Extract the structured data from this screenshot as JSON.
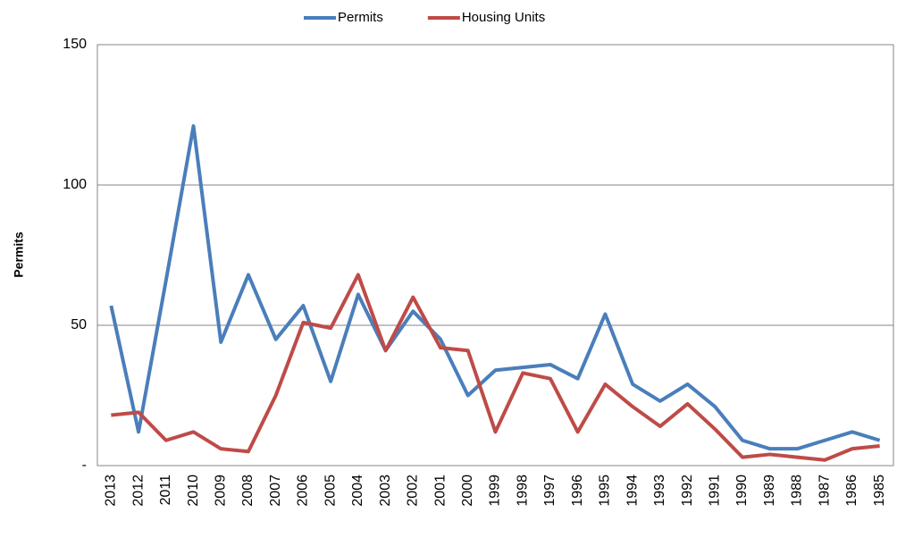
{
  "chart_data": {
    "type": "line",
    "y_label": "Permits",
    "categories": [
      "2013",
      "2012",
      "2011",
      "2010",
      "2009",
      "2008",
      "2007",
      "2006",
      "2005",
      "2004",
      "2003",
      "2002",
      "2001",
      "2000",
      "1999",
      "1998",
      "1997",
      "1996",
      "1995",
      "1994",
      "1993",
      "1992",
      "1991",
      "1990",
      "1989",
      "1988",
      "1987",
      "1986",
      "1985"
    ],
    "series": [
      {
        "name": "Permits",
        "color": "#4a7ebb",
        "values": [
          57,
          12,
          66,
          121,
          44,
          68,
          45,
          57,
          30,
          61,
          41,
          55,
          45,
          25,
          34,
          35,
          36,
          31,
          54,
          29,
          23,
          29,
          21,
          9,
          6,
          6,
          9,
          12,
          9
        ]
      },
      {
        "name": "Housing Units",
        "color": "#be4b48",
        "values": [
          18,
          19,
          9,
          12,
          6,
          5,
          25,
          51,
          49,
          68,
          41,
          60,
          42,
          41,
          12,
          33,
          31,
          12,
          29,
          21,
          14,
          22,
          13,
          3,
          4,
          3,
          2,
          6,
          7
        ]
      }
    ],
    "ylim": [
      0,
      150
    ],
    "yticks": [
      {
        "value": 0,
        "label": "-"
      },
      50,
      100,
      150
    ],
    "grid": true,
    "legend": "top"
  }
}
